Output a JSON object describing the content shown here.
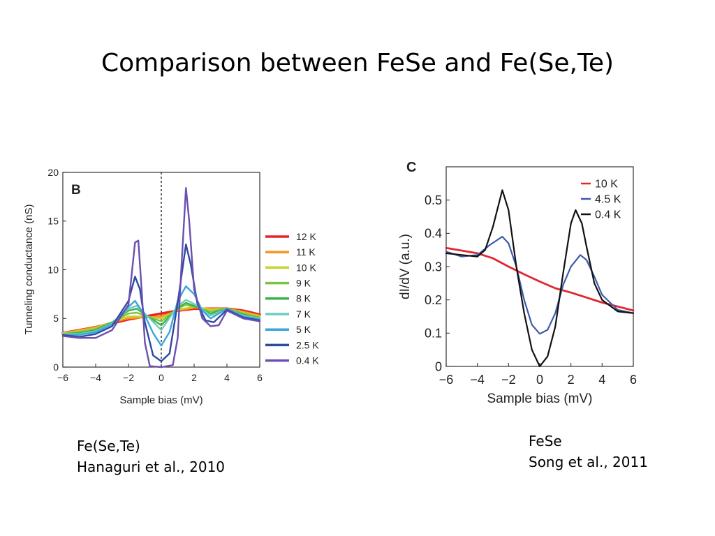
{
  "slide": {
    "title": "Comparison between FeSe and Fe(Se,Te)"
  },
  "captions": {
    "left": {
      "line1": "Fe(Se,Te)",
      "line2": "Hanaguri et al., 2010"
    },
    "right": {
      "line1": "FeSe",
      "line2": "Song et al., 2011"
    }
  },
  "chart_data": [
    {
      "type": "line",
      "panel_label": "B",
      "xlabel": "Sample bias (mV)",
      "ylabel": "Tunneling conductance (nS)",
      "xlim": [
        -6,
        6
      ],
      "ylim": [
        0,
        20
      ],
      "xticks": [
        -6,
        -4,
        -2,
        0,
        2,
        4,
        6
      ],
      "yticks": [
        0,
        5,
        10,
        15,
        20
      ],
      "tick_labels_x": [
        "−6",
        "−4",
        "−2",
        "0",
        "2",
        "4",
        "6"
      ],
      "tick_labels_y": [
        "0",
        "5",
        "10",
        "15",
        "20"
      ],
      "zero_bias_dashed_line": true,
      "legend_position": "right-outside",
      "series": [
        {
          "name": "12 K",
          "color": "#e8241d",
          "points": [
            [
              -6,
              3.5
            ],
            [
              -5,
              3.8
            ],
            [
              -4,
              4.1
            ],
            [
              -3,
              4.5
            ],
            [
              -2,
              4.9
            ],
            [
              -1,
              5.2
            ],
            [
              0,
              5.5
            ],
            [
              1,
              5.8
            ],
            [
              2,
              6.0
            ],
            [
              3,
              6.0
            ],
            [
              4,
              6.0
            ],
            [
              5,
              5.8
            ],
            [
              6,
              5.4
            ]
          ]
        },
        {
          "name": "11 K",
          "color": "#f7941d",
          "points": [
            [
              -6,
              3.5
            ],
            [
              -5,
              3.8
            ],
            [
              -4,
              4.1
            ],
            [
              -3,
              4.6
            ],
            [
              -2,
              5.0
            ],
            [
              -1,
              5.1
            ],
            [
              0,
              5.2
            ],
            [
              1,
              5.8
            ],
            [
              2,
              6.1
            ],
            [
              3,
              6.0
            ],
            [
              4,
              6.0
            ],
            [
              5,
              5.7
            ],
            [
              6,
              5.3
            ]
          ]
        },
        {
          "name": "10 K",
          "color": "#c9d22c",
          "points": [
            [
              -6,
              3.5
            ],
            [
              -5,
              3.7
            ],
            [
              -4,
              4.0
            ],
            [
              -3,
              4.6
            ],
            [
              -2,
              5.2
            ],
            [
              -1,
              5.2
            ],
            [
              0,
              5.0
            ],
            [
              1,
              5.9
            ],
            [
              2,
              6.2
            ],
            [
              3,
              5.9
            ],
            [
              4,
              6.0
            ],
            [
              5,
              5.6
            ],
            [
              6,
              5.2
            ]
          ]
        },
        {
          "name": "9 K",
          "color": "#7cc243",
          "points": [
            [
              -6,
              3.4
            ],
            [
              -5,
              3.6
            ],
            [
              -4,
              3.9
            ],
            [
              -3,
              4.6
            ],
            [
              -2,
              5.5
            ],
            [
              -1.5,
              5.6
            ],
            [
              -1,
              5.3
            ],
            [
              0,
              4.7
            ],
            [
              1,
              6.0
            ],
            [
              1.5,
              6.4
            ],
            [
              2,
              6.2
            ],
            [
              3,
              5.7
            ],
            [
              4,
              6.0
            ],
            [
              5,
              5.5
            ],
            [
              6,
              5.1
            ]
          ]
        },
        {
          "name": "8 K",
          "color": "#39b54a",
          "points": [
            [
              -6,
              3.4
            ],
            [
              -5,
              3.5
            ],
            [
              -4,
              3.8
            ],
            [
              -3,
              4.6
            ],
            [
              -2,
              5.8
            ],
            [
              -1.5,
              6.0
            ],
            [
              -1,
              5.4
            ],
            [
              0,
              4.3
            ],
            [
              1,
              6.1
            ],
            [
              1.5,
              6.6
            ],
            [
              2,
              6.3
            ],
            [
              3,
              5.5
            ],
            [
              4,
              6.0
            ],
            [
              5,
              5.4
            ],
            [
              6,
              5.0
            ]
          ]
        },
        {
          "name": "7 K",
          "color": "#70cbc0",
          "points": [
            [
              -6,
              3.4
            ],
            [
              -5,
              3.4
            ],
            [
              -4,
              3.7
            ],
            [
              -3,
              4.5
            ],
            [
              -2,
              6.0
            ],
            [
              -1.5,
              6.3
            ],
            [
              -1,
              5.5
            ],
            [
              0,
              3.8
            ],
            [
              1,
              6.3
            ],
            [
              1.5,
              6.9
            ],
            [
              2,
              6.5
            ],
            [
              3,
              5.3
            ],
            [
              4,
              6.0
            ],
            [
              5,
              5.3
            ],
            [
              6,
              5.0
            ]
          ]
        },
        {
          "name": "5 K",
          "color": "#3aa6dd",
          "points": [
            [
              -6,
              3.3
            ],
            [
              -5,
              3.3
            ],
            [
              -4,
              3.6
            ],
            [
              -3,
              4.4
            ],
            [
              -2,
              6.2
            ],
            [
              -1.6,
              6.8
            ],
            [
              -1,
              5.3
            ],
            [
              -0.5,
              3.5
            ],
            [
              0,
              2.2
            ],
            [
              0.5,
              3.6
            ],
            [
              1,
              6.8
            ],
            [
              1.5,
              8.3
            ],
            [
              2,
              7.5
            ],
            [
              2.5,
              5.8
            ],
            [
              3,
              5.0
            ],
            [
              4,
              6.0
            ],
            [
              5,
              5.2
            ],
            [
              6,
              4.9
            ]
          ]
        },
        {
          "name": "2.5 K",
          "color": "#2e4a9e",
          "points": [
            [
              -6,
              3.3
            ],
            [
              -5,
              3.1
            ],
            [
              -4,
              3.4
            ],
            [
              -3,
              4.2
            ],
            [
              -2,
              6.8
            ],
            [
              -1.6,
              9.3
            ],
            [
              -1.3,
              8.0
            ],
            [
              -1,
              4.6
            ],
            [
              -0.5,
              1.2
            ],
            [
              0,
              0.6
            ],
            [
              0.5,
              1.4
            ],
            [
              1,
              6.6
            ],
            [
              1.5,
              12.6
            ],
            [
              1.8,
              10.5
            ],
            [
              2.2,
              6.5
            ],
            [
              2.7,
              4.8
            ],
            [
              3.2,
              4.6
            ],
            [
              4,
              5.9
            ],
            [
              5,
              5.1
            ],
            [
              6,
              4.8
            ]
          ]
        },
        {
          "name": "0.4 K",
          "color": "#6c4fb0",
          "points": [
            [
              -6,
              3.2
            ],
            [
              -5,
              3.0
            ],
            [
              -4,
              3.0
            ],
            [
              -3,
              3.8
            ],
            [
              -2,
              6.4
            ],
            [
              -1.6,
              12.8
            ],
            [
              -1.4,
              13.0
            ],
            [
              -1.2,
              8.0
            ],
            [
              -1,
              2.5
            ],
            [
              -0.7,
              0.1
            ],
            [
              0,
              0.0
            ],
            [
              0.7,
              0.2
            ],
            [
              1,
              3.0
            ],
            [
              1.2,
              9.5
            ],
            [
              1.5,
              18.4
            ],
            [
              1.7,
              15.0
            ],
            [
              2,
              8.0
            ],
            [
              2.5,
              5.0
            ],
            [
              3,
              4.2
            ],
            [
              3.5,
              4.3
            ],
            [
              4,
              5.8
            ],
            [
              5,
              5.0
            ],
            [
              6,
              4.7
            ]
          ]
        }
      ]
    },
    {
      "type": "line",
      "panel_label": "C",
      "xlabel": "Sample bias (mV)",
      "ylabel": "dI/dV (a.u.)",
      "xlim": [
        -6,
        6
      ],
      "ylim": [
        0,
        0.6
      ],
      "xticks": [
        -6,
        -4,
        -2,
        0,
        2,
        4,
        6
      ],
      "yticks": [
        0,
        0.1,
        0.2,
        0.3,
        0.4,
        0.5
      ],
      "tick_labels_x": [
        "−6",
        "−4",
        "−2",
        "0",
        "2",
        "4",
        "6"
      ],
      "tick_labels_y": [
        "0",
        "0.1",
        "0.2",
        "0.3",
        "0.4",
        "0.5"
      ],
      "legend_position": "top-right",
      "series": [
        {
          "name": "10 K",
          "color": "#e0272c",
          "points": [
            [
              -6,
              0.356
            ],
            [
              -4,
              0.34
            ],
            [
              -3,
              0.325
            ],
            [
              -2,
              0.3
            ],
            [
              -1,
              0.277
            ],
            [
              0,
              0.255
            ],
            [
              1,
              0.235
            ],
            [
              2,
              0.222
            ],
            [
              3,
              0.207
            ],
            [
              4,
              0.192
            ],
            [
              5,
              0.18
            ],
            [
              6,
              0.168
            ]
          ]
        },
        {
          "name": "4.5 K",
          "color": "#3c5ba8",
          "points": [
            [
              -6,
              0.345
            ],
            [
              -5,
              0.33
            ],
            [
              -4,
              0.335
            ],
            [
              -3.2,
              0.365
            ],
            [
              -2.4,
              0.39
            ],
            [
              -2,
              0.37
            ],
            [
              -1.5,
              0.3
            ],
            [
              -1,
              0.2
            ],
            [
              -0.5,
              0.125
            ],
            [
              0,
              0.098
            ],
            [
              0.5,
              0.11
            ],
            [
              1,
              0.16
            ],
            [
              1.5,
              0.245
            ],
            [
              2,
              0.3
            ],
            [
              2.6,
              0.335
            ],
            [
              3,
              0.32
            ],
            [
              3.5,
              0.27
            ],
            [
              4,
              0.215
            ],
            [
              5,
              0.17
            ],
            [
              6,
              0.16
            ]
          ]
        },
        {
          "name": "0.4 K",
          "color": "#111111",
          "points": [
            [
              -6,
              0.34
            ],
            [
              -5,
              0.335
            ],
            [
              -4,
              0.33
            ],
            [
              -3.5,
              0.35
            ],
            [
              -3,
              0.42
            ],
            [
              -2.4,
              0.53
            ],
            [
              -2,
              0.47
            ],
            [
              -1.5,
              0.3
            ],
            [
              -1,
              0.16
            ],
            [
              -0.5,
              0.05
            ],
            [
              0,
              0.0
            ],
            [
              0.5,
              0.03
            ],
            [
              1,
              0.12
            ],
            [
              1.5,
              0.28
            ],
            [
              2,
              0.43
            ],
            [
              2.3,
              0.47
            ],
            [
              2.7,
              0.43
            ],
            [
              3,
              0.36
            ],
            [
              3.5,
              0.25
            ],
            [
              4,
              0.2
            ],
            [
              5,
              0.165
            ],
            [
              6,
              0.16
            ]
          ]
        }
      ]
    }
  ]
}
